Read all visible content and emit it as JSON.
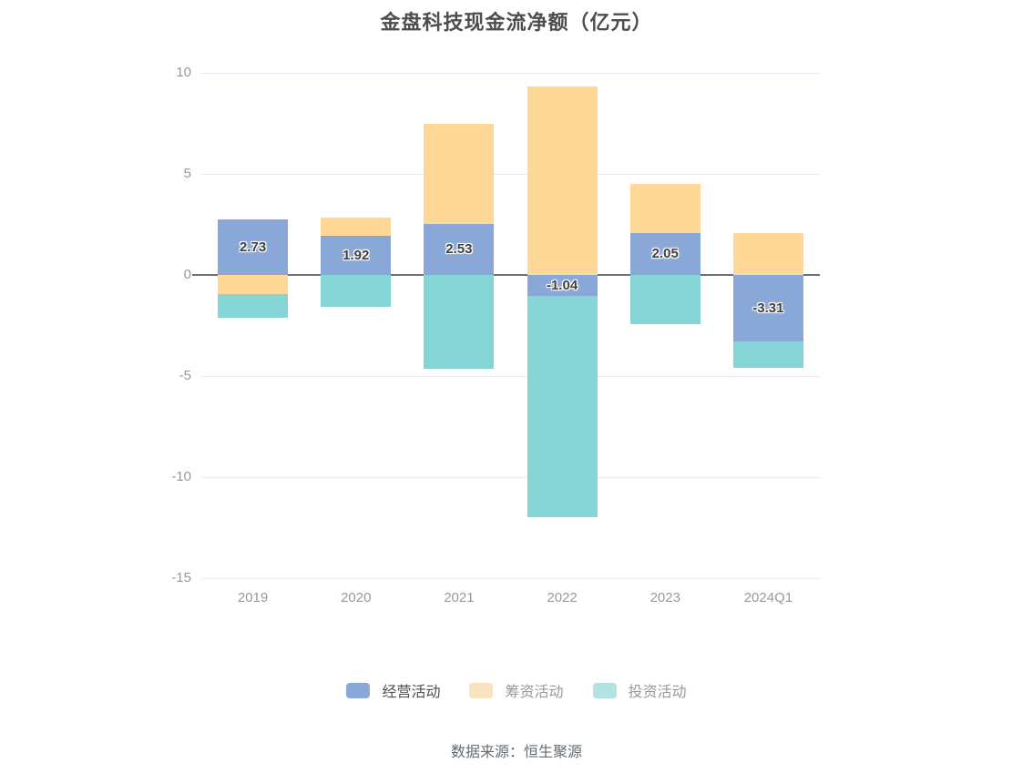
{
  "source": "数据来源：恒生聚源",
  "chart_data": {
    "type": "bar",
    "stacked": true,
    "title": "金盘科技现金流净额（亿元）",
    "categories": [
      "2019",
      "2020",
      "2021",
      "2022",
      "2023",
      "2024Q1"
    ],
    "series": [
      {
        "name": "经营活动",
        "color": "#8aa8d7",
        "labeled": true,
        "values": [
          2.73,
          1.92,
          2.53,
          -1.04,
          2.05,
          -3.31
        ]
      },
      {
        "name": "筹资活动",
        "color": "#ffd898",
        "labeled": false,
        "values": [
          -0.96,
          0.9,
          4.95,
          9.31,
          2.45,
          2.08
        ]
      },
      {
        "name": "投资活动",
        "color": "#86d5d6",
        "labeled": false,
        "values": [
          -1.17,
          -1.58,
          -4.64,
          -10.95,
          -2.45,
          -1.3
        ]
      }
    ],
    "ylim": [
      -15,
      10
    ],
    "yticks": [
      10,
      5,
      0,
      -5,
      -10,
      -15
    ],
    "grid": true,
    "legend_position": "bottom"
  },
  "legend": {
    "items": [
      {
        "label": "经营活动",
        "swatch": "#8aa8d7",
        "text_color": "#4d4d4d"
      },
      {
        "label": "筹资活动",
        "swatch": "#fae3c0",
        "text_color": "#999999"
      },
      {
        "label": "投资活动",
        "swatch": "#b2e2e2",
        "text_color": "#999999"
      }
    ]
  },
  "colors": {
    "grid": "#e5eaf6",
    "zero_axis": "#6e7079",
    "tick_text": "#999999",
    "title_text": "#4d4d4d"
  }
}
